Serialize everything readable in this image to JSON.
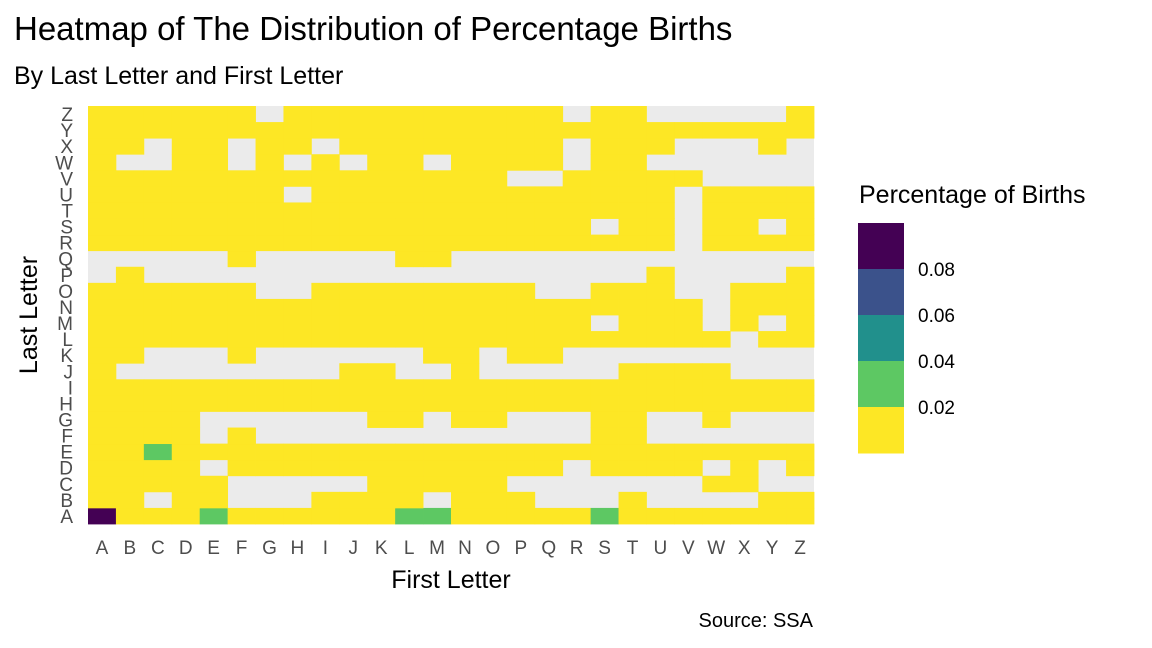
{
  "chart_data": {
    "type": "heatmap",
    "title": "Heatmap of The Distribution of Percentage Births",
    "subtitle": "By Last Letter and First Letter",
    "xlabel": "First Letter",
    "ylabel": "Last Letter",
    "caption": "Source: SSA",
    "x_categories": [
      "A",
      "B",
      "C",
      "D",
      "E",
      "F",
      "G",
      "H",
      "I",
      "J",
      "K",
      "L",
      "M",
      "N",
      "O",
      "P",
      "Q",
      "R",
      "S",
      "T",
      "U",
      "V",
      "W",
      "X",
      "Y",
      "Z"
    ],
    "y_categories": [
      "A",
      "B",
      "C",
      "D",
      "E",
      "F",
      "G",
      "H",
      "I",
      "J",
      "K",
      "L",
      "M",
      "N",
      "O",
      "P",
      "Q",
      "R",
      "S",
      "T",
      "U",
      "V",
      "W",
      "X",
      "Y",
      "Z"
    ],
    "rows": {
      "Z": "11111101111111111011000001",
      "Y": "11111111111111111111111111",
      "X": "11011011011111111011100010",
      "W": "10011010101101111011000000",
      "V": "11111111111111100111110000",
      "U": "11111110111111111111101111",
      "T": "11111111111111111111101111",
      "S": "11111111111111111101101101",
      "R": "11111111111111111111101111",
      "Q": "00000100000110000000000000",
      "P": "01000000000000000000100001",
      "O": "11111100111111110011100111",
      "N": "11111111111111111111110111",
      "M": "11111111111111111101110101",
      "L": "11111111111111111111111011",
      "K": "11000100000011011000000000",
      "J": "10000000011001000001111000",
      "I": "11111111111111111111111111",
      "H": "11111111111111111111111111",
      "G": "11110000001101100011001000",
      "F": "11110100000000000011000000",
      "E": "11111111111111111111111111",
      "D": "11110111111111111011110101",
      "C": "11111000001111100000001100",
      "B": "11011000111101110001000011",
      "A": "11111111111111111111111111"
    },
    "highlighted_cells": [
      {
        "x": "A",
        "y": "A",
        "value": 0.095
      },
      {
        "x": "E",
        "y": "A",
        "value": 0.03
      },
      {
        "x": "L",
        "y": "A",
        "value": 0.03
      },
      {
        "x": "M",
        "y": "A",
        "value": 0.03
      },
      {
        "x": "S",
        "y": "A",
        "value": 0.03
      },
      {
        "x": "C",
        "y": "E",
        "value": 0.03
      }
    ],
    "default_value": 0.005,
    "missing_color": "#ebebeb",
    "legend": {
      "title": "Percentage of Births",
      "placement": "right",
      "breaks": [
        "0.08",
        "0.06",
        "0.04",
        "0.02"
      ],
      "colors": [
        "#440154",
        "#3b528b",
        "#21908c",
        "#5dc863",
        "#fde725"
      ]
    }
  }
}
